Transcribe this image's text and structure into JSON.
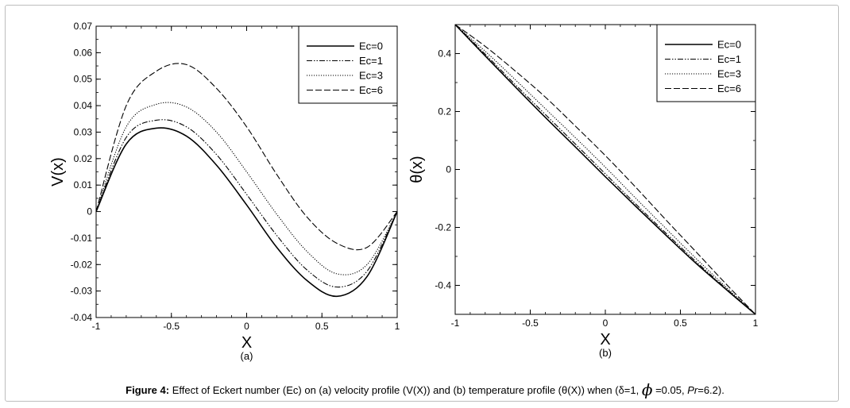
{
  "caption": {
    "figure_label": "Figure 4:",
    "text_before_phi": "Effect of Eckert number (Ec) on (a) velocity profile (V(X)) and (b) temperature profile (θ(X)) when (δ=1,",
    "phi_symbol": "ϕ",
    "text_after_phi": "=0.05,",
    "pr_symbol": "Pr",
    "text_end": "=6.2)."
  },
  "chart_data": [
    {
      "type": "line",
      "panel_label": "(a)",
      "xlabel": "X",
      "ylabel": "V(x)",
      "xlim": [
        -1,
        1
      ],
      "ylim": [
        -0.04,
        0.07
      ],
      "xticks": [
        -1,
        -0.5,
        0,
        0.5,
        1
      ],
      "xtick_labels": [
        "-1",
        "-0.5",
        "0",
        "0.5",
        "1"
      ],
      "yticks": [
        -0.04,
        -0.03,
        -0.02,
        -0.01,
        0,
        0.01,
        0.02,
        0.03,
        0.04,
        0.05,
        0.06,
        0.07
      ],
      "ytick_labels": [
        "-0.04",
        "-0.03",
        "-0.02",
        "-0.01",
        "0",
        "0.01",
        "0.02",
        "0.03",
        "0.04",
        "0.05",
        "0.06",
        "0.07"
      ],
      "grid": false,
      "legend_position": "top-right",
      "x": [
        -1,
        -0.8,
        -0.6,
        -0.4,
        -0.2,
        0,
        0.2,
        0.4,
        0.6,
        0.8,
        1
      ],
      "series": [
        {
          "name": "Ec=0",
          "dash": "solid",
          "values": [
            0,
            0.0255,
            0.0315,
            0.0285,
            0.0175,
            0.0025,
            -0.0135,
            -0.026,
            -0.032,
            -0.0245,
            0
          ]
        },
        {
          "name": "Ec=1",
          "dash": "dashdotdot",
          "values": [
            0,
            0.028,
            0.0345,
            0.032,
            0.0215,
            0.0065,
            -0.009,
            -0.022,
            -0.0285,
            -0.0225,
            0
          ]
        },
        {
          "name": "Ec=3",
          "dash": "dotted",
          "values": [
            0,
            0.032,
            0.0405,
            0.0395,
            0.03,
            0.015,
            -0.001,
            -0.015,
            -0.0235,
            -0.02,
            0
          ]
        },
        {
          "name": "Ec=6",
          "dash": "longdash",
          "values": [
            0,
            0.04,
            0.053,
            0.0555,
            0.0465,
            0.032,
            0.014,
            -0.002,
            -0.012,
            -0.0135,
            0
          ]
        }
      ]
    },
    {
      "type": "line",
      "panel_label": "(b)",
      "xlabel": "X",
      "ylabel": "θ(x)",
      "xlim": [
        -1,
        1
      ],
      "ylim": [
        -0.5,
        0.5
      ],
      "xticks": [
        -1,
        -0.5,
        0,
        0.5,
        1
      ],
      "xtick_labels": [
        "-1",
        "-0.5",
        "0",
        "0.5",
        "1"
      ],
      "yticks": [
        -0.4,
        -0.2,
        0,
        0.2,
        0.4
      ],
      "ytick_labels": [
        "-0.4",
        "-0.2",
        "0",
        "0.2",
        "0.4"
      ],
      "grid": false,
      "legend_position": "top-right",
      "x": [
        -1,
        -0.8,
        -0.6,
        -0.4,
        -0.2,
        0,
        0.2,
        0.4,
        0.6,
        0.8,
        1
      ],
      "series": [
        {
          "name": "Ec=0",
          "dash": "solid",
          "values": [
            0.5,
            0.392,
            0.285,
            0.18,
            0.078,
            -0.025,
            -0.126,
            -0.225,
            -0.322,
            -0.412,
            -0.5
          ]
        },
        {
          "name": "Ec=1",
          "dash": "dashdotdot",
          "values": [
            0.5,
            0.398,
            0.293,
            0.19,
            0.088,
            -0.015,
            -0.118,
            -0.218,
            -0.316,
            -0.409,
            -0.5
          ]
        },
        {
          "name": "Ec=3",
          "dash": "dotted",
          "values": [
            0.5,
            0.408,
            0.31,
            0.21,
            0.11,
            0.008,
            -0.098,
            -0.202,
            -0.305,
            -0.404,
            -0.5
          ]
        },
        {
          "name": "Ec=6",
          "dash": "longdash",
          "values": [
            0.5,
            0.425,
            0.34,
            0.25,
            0.15,
            0.048,
            -0.06,
            -0.172,
            -0.282,
            -0.393,
            -0.5
          ]
        }
      ]
    }
  ]
}
